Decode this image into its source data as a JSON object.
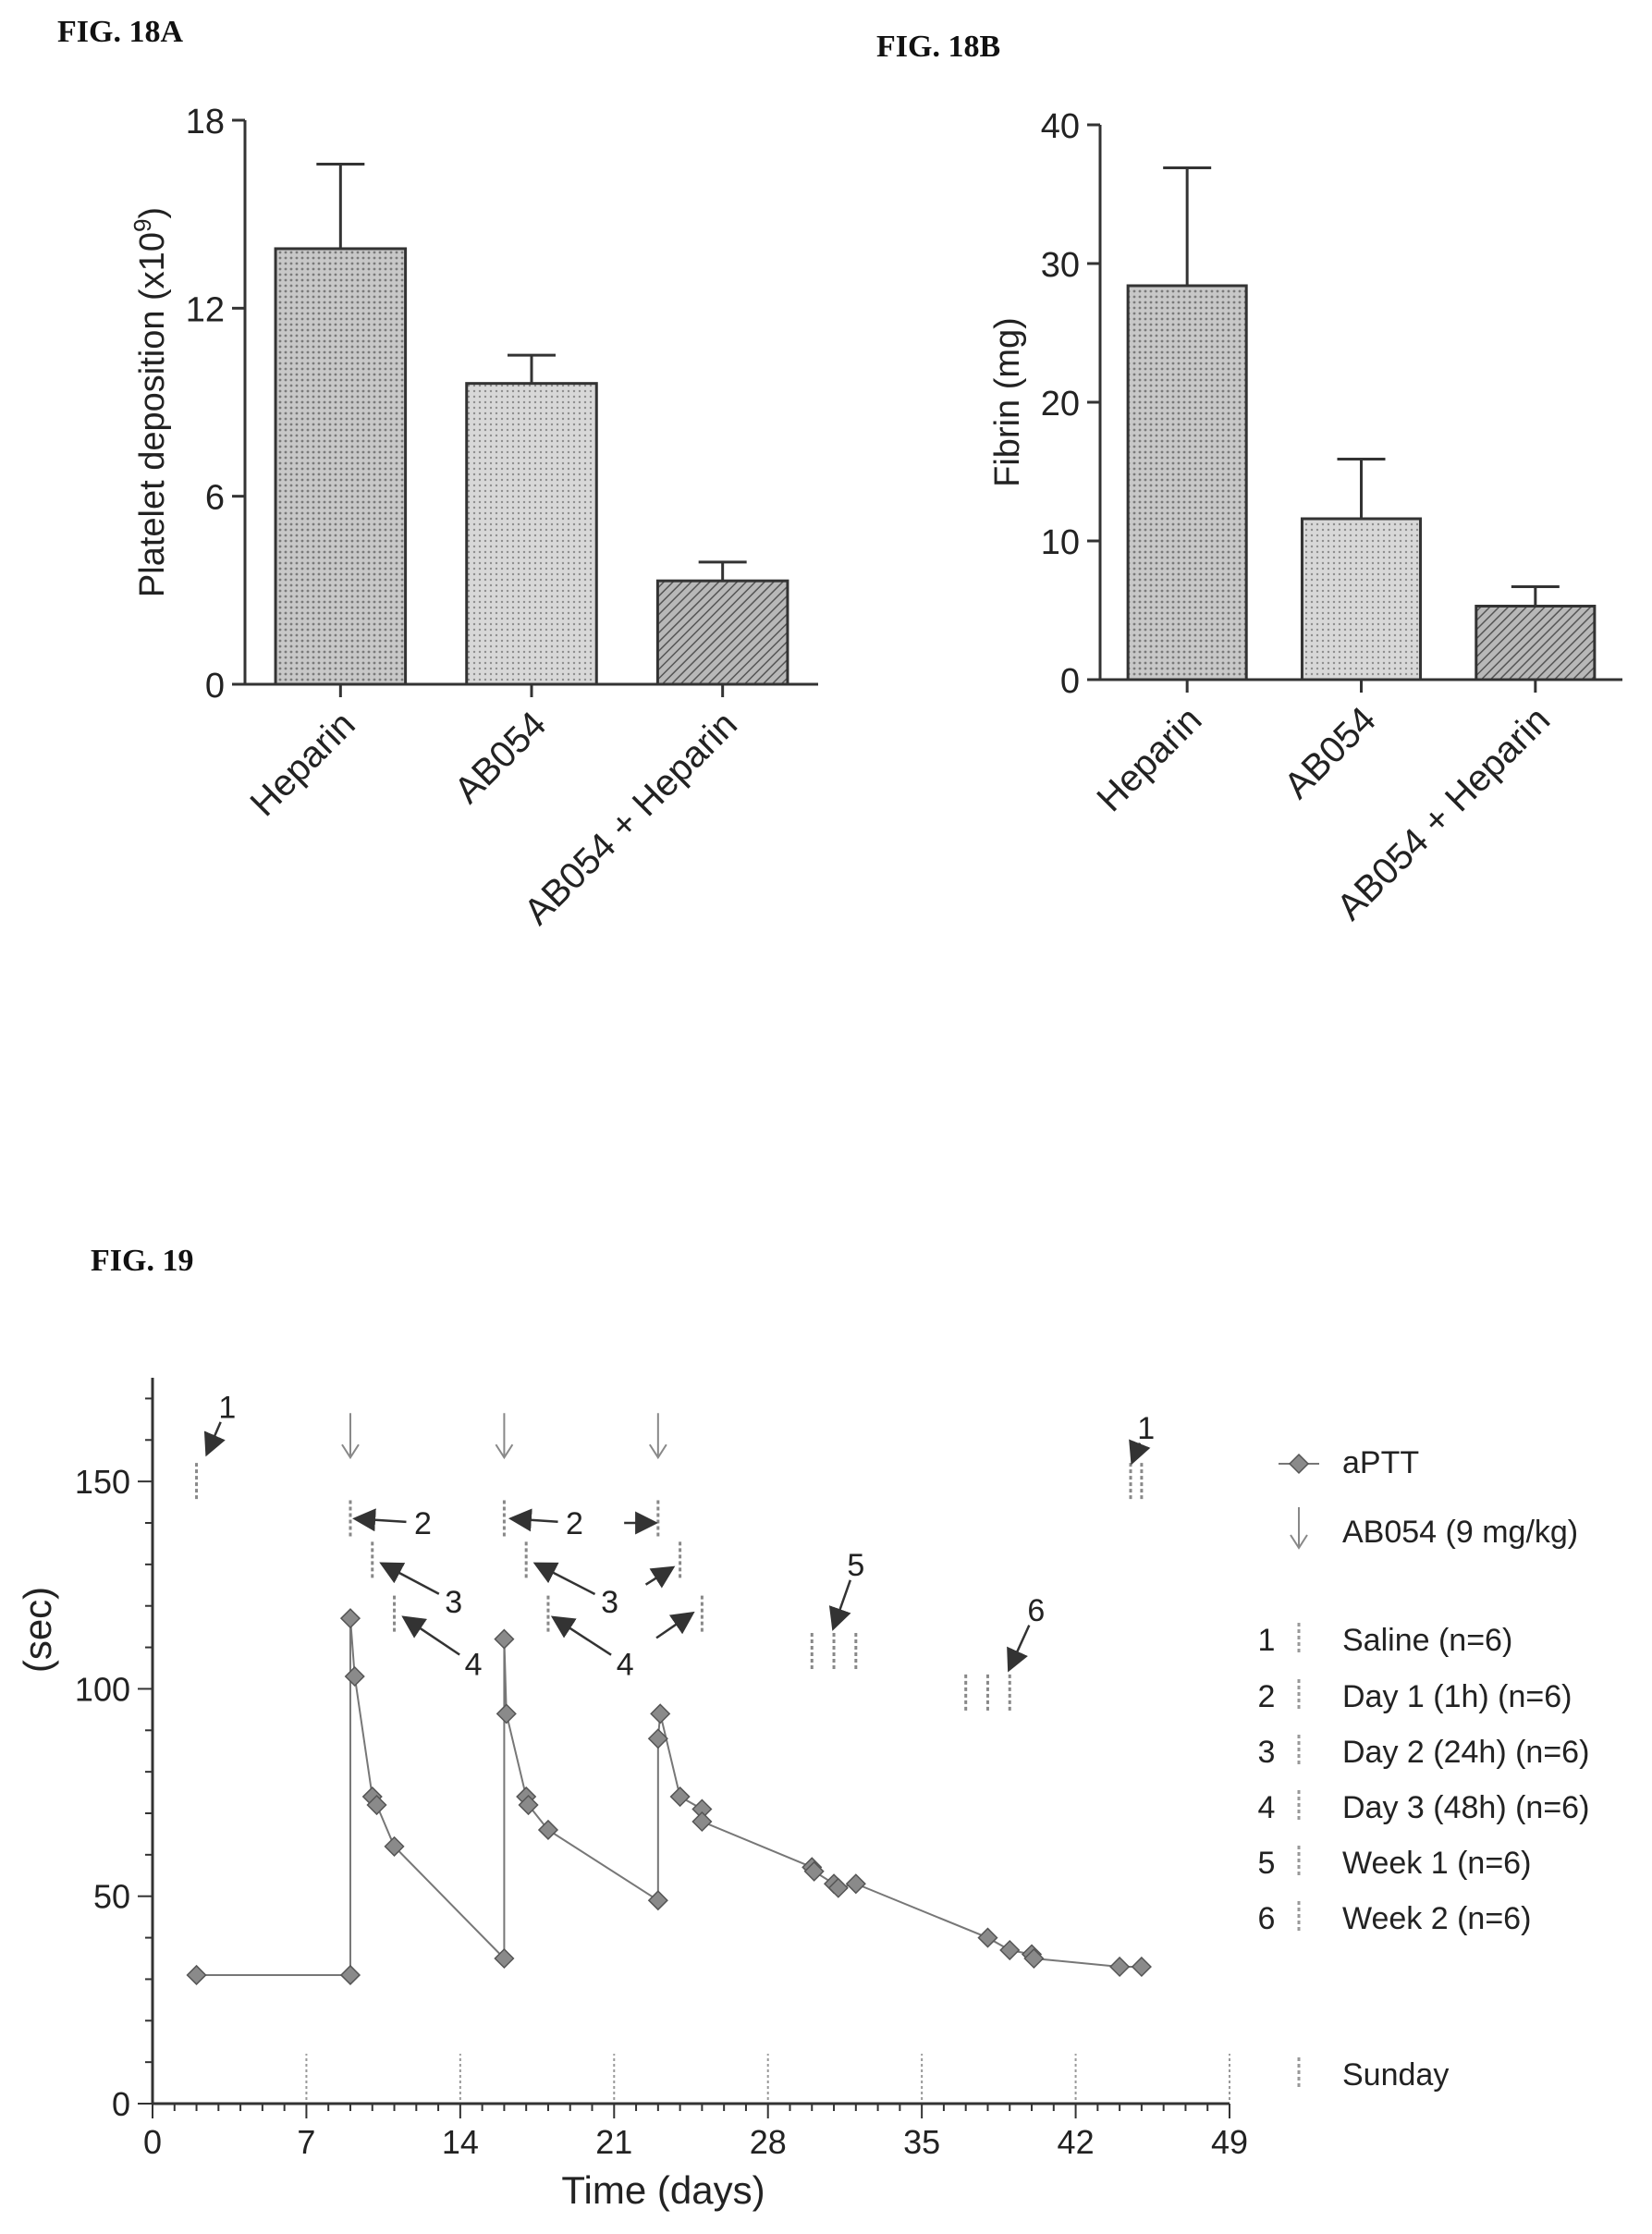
{
  "figures": {
    "fig18a_label": "FIG. 18A",
    "fig18b_label": "FIG. 18B",
    "fig19_label": "FIG. 19"
  },
  "chart_data": [
    {
      "id": "fig18a",
      "type": "bar",
      "ylabel": "Platelet deposition (x10",
      "ylabel_exp": "9",
      "ylabel_close": ")",
      "ylim": [
        0,
        18
      ],
      "yticks": [
        "0",
        "6",
        "12",
        "18"
      ],
      "ytick_values": [
        0,
        6,
        12,
        18
      ],
      "categories": [
        "Heparin",
        "AB054",
        "AB054 + Heparin"
      ],
      "values": [
        13.9,
        9.6,
        3.3
      ],
      "errors": [
        2.7,
        0.9,
        0.6
      ]
    },
    {
      "id": "fig18b",
      "type": "bar",
      "ylabel": "Fibrin (mg)",
      "ylim": [
        0,
        40
      ],
      "yticks": [
        "0",
        "10",
        "20",
        "30",
        "40"
      ],
      "ytick_values": [
        0,
        10,
        20,
        30,
        40
      ],
      "categories": [
        "Heparin",
        "AB054",
        "AB054 + Heparin"
      ],
      "values": [
        28.4,
        11.6,
        5.3
      ],
      "errors": [
        8.5,
        4.3,
        1.4
      ]
    },
    {
      "id": "fig19",
      "type": "line",
      "xlabel": "Time (days)",
      "ylabel": "(sec)",
      "xlim": [
        0,
        49
      ],
      "ylim": [
        0,
        175
      ],
      "xticks": [
        "0",
        "7",
        "14",
        "21",
        "28",
        "35",
        "42",
        "49"
      ],
      "xtick_values": [
        0,
        7,
        14,
        21,
        28,
        35,
        42,
        49
      ],
      "yticks": [
        "0",
        "50",
        "100",
        "150"
      ],
      "ytick_values": [
        0,
        50,
        100,
        150
      ],
      "series": [
        {
          "name": "aPTT",
          "x": [
            2,
            9,
            9,
            9.2,
            10,
            10.2,
            11,
            16,
            16,
            16.1,
            17,
            17.1,
            18,
            23,
            23,
            23.1,
            24,
            25,
            25,
            30,
            30.1,
            31,
            31.2,
            32,
            38,
            39,
            40,
            40.1,
            44,
            45
          ],
          "y": [
            31,
            31,
            117,
            103,
            74,
            72,
            62,
            35,
            112,
            94,
            74,
            72,
            66,
            49,
            88,
            94,
            74,
            71,
            68,
            57,
            56,
            53,
            52,
            53,
            40,
            37,
            36,
            35,
            33,
            33
          ]
        }
      ],
      "dosing_arrows": {
        "x": [
          9,
          16,
          23
        ],
        "y": 158
      },
      "sampling_markers": [
        {
          "group": 1,
          "x": [
            2,
            44.5,
            45
          ],
          "y": 150
        },
        {
          "group": 2,
          "x": [
            9,
            16,
            23
          ],
          "y": 141
        },
        {
          "group": 3,
          "x": [
            10,
            17,
            24
          ],
          "y": 131
        },
        {
          "group": 4,
          "x": [
            11,
            18,
            25
          ],
          "y": 118
        },
        {
          "group": 5,
          "x": [
            30,
            31,
            32
          ],
          "y": 109
        },
        {
          "group": 6,
          "x": [
            37,
            38,
            39
          ],
          "y": 99
        }
      ],
      "sunday_markers": {
        "x": [
          7,
          14,
          21,
          28,
          35,
          42,
          49
        ],
        "y": 5
      },
      "annotations": [
        {
          "text": "1",
          "x": 3.4,
          "y": 168,
          "tx": 2.5,
          "ty": 157
        },
        {
          "text": "1",
          "x": 45.2,
          "y": 163,
          "tx": 44.6,
          "ty": 155
        },
        {
          "text": "2",
          "x": 12.3,
          "y": 140,
          "tx": 9.3,
          "ty": 141
        },
        {
          "text": "2",
          "x": 19.2,
          "y": 140,
          "tx": 16.4,
          "ty": 141
        },
        {
          "text": "",
          "x": 20.7,
          "y": 140,
          "tx": 22.8,
          "ty": 140
        },
        {
          "text": "3",
          "x": 13.7,
          "y": 121,
          "tx": 10.5,
          "ty": 130
        },
        {
          "text": "3",
          "x": 20.8,
          "y": 121,
          "tx": 17.5,
          "ty": 130
        },
        {
          "text": "",
          "x": 21.8,
          "y": 123,
          "tx": 23.6,
          "ty": 129
        },
        {
          "text": "4",
          "x": 14.6,
          "y": 106,
          "tx": 11.5,
          "ty": 117
        },
        {
          "text": "4",
          "x": 21.5,
          "y": 106,
          "tx": 18.3,
          "ty": 117
        },
        {
          "text": "",
          "x": 22.3,
          "y": 110,
          "tx": 24.5,
          "ty": 118
        },
        {
          "text": "5",
          "x": 32.0,
          "y": 130,
          "tx": 31.0,
          "ty": 115
        },
        {
          "text": "6",
          "x": 40.2,
          "y": 119,
          "tx": 39.0,
          "ty": 105
        }
      ],
      "legend": {
        "placement": "right",
        "entries": [
          {
            "num": "",
            "label": "aPTT"
          },
          {
            "num": "",
            "label": "AB054 (9 mg/kg)"
          },
          {
            "num": "1",
            "label": "Saline (n=6)"
          },
          {
            "num": "2",
            "label": "Day 1 (1h) (n=6)"
          },
          {
            "num": "3",
            "label": "Day 2 (24h) (n=6)"
          },
          {
            "num": "4",
            "label": "Day 3 (48h) (n=6)"
          },
          {
            "num": "5",
            "label": "Week 1 (n=6)"
          },
          {
            "num": "6",
            "label": "Week 2 (n=6)"
          },
          {
            "num": "",
            "label": "Sunday"
          }
        ]
      },
      "colors": {
        "line": "#777777",
        "marker": "#8a8a8a",
        "marker_edge": "#555555"
      }
    }
  ]
}
